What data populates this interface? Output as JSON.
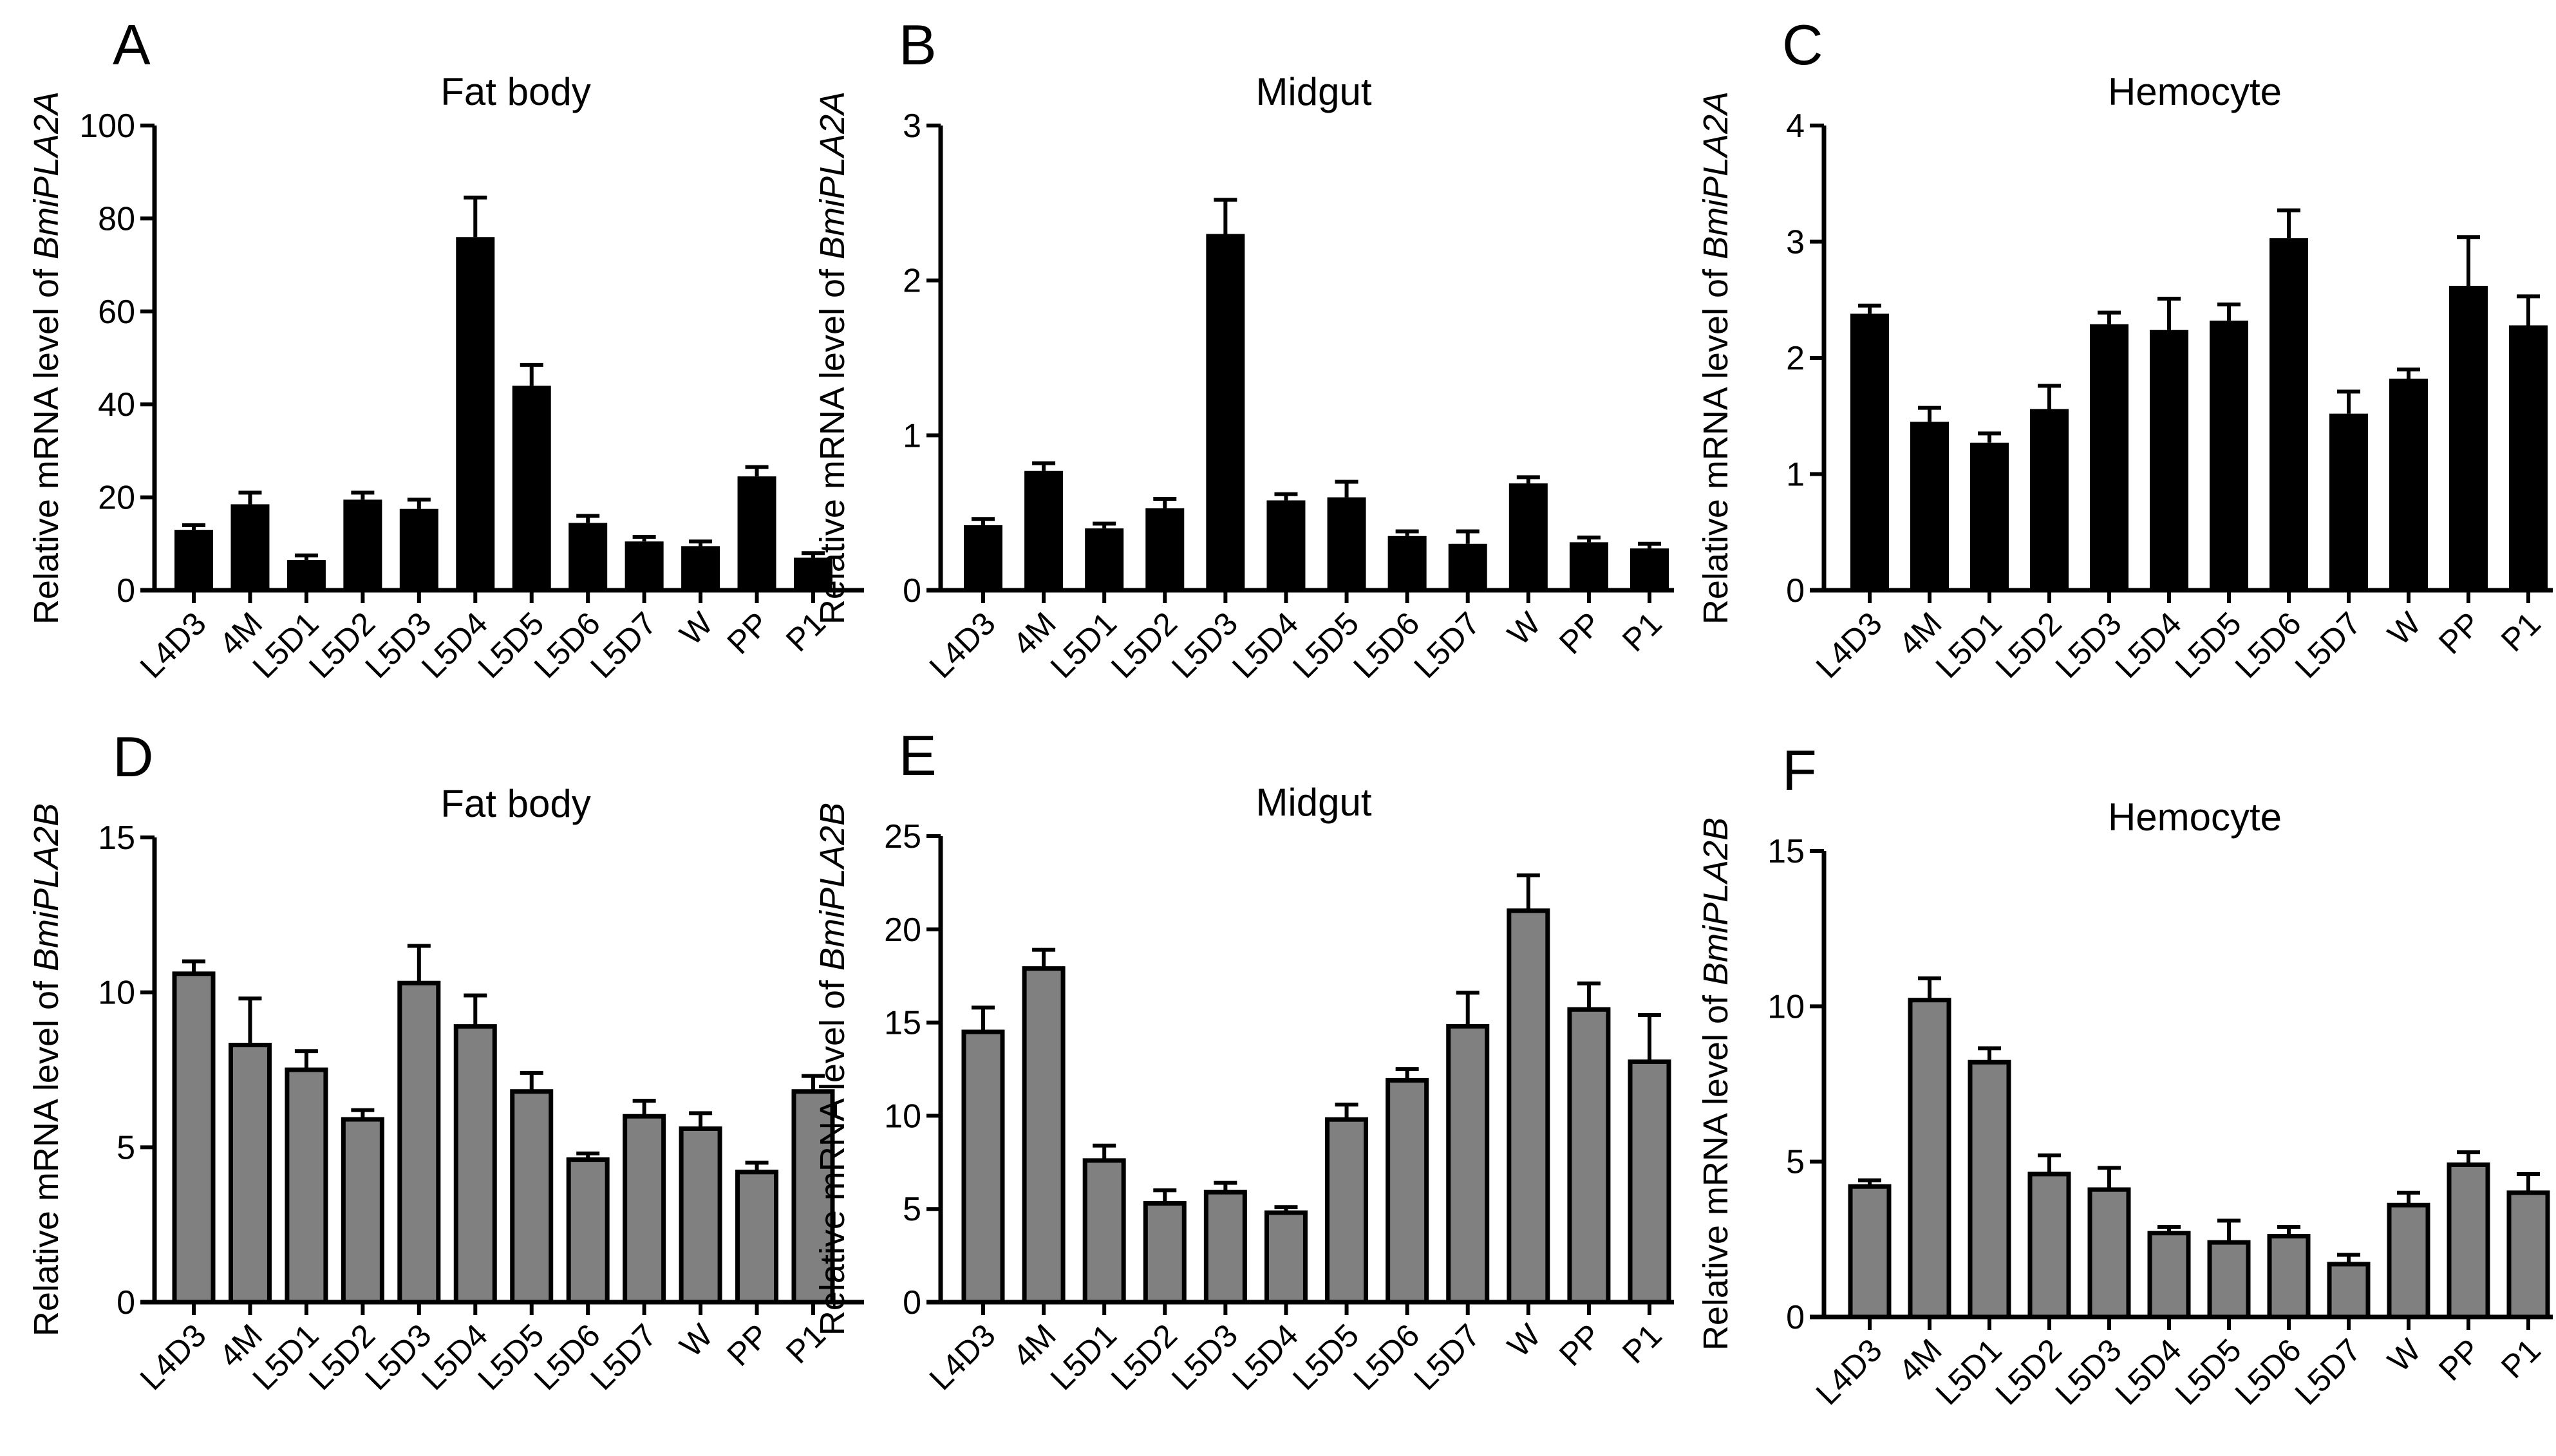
{
  "categories": [
    "L4D3",
    "4M",
    "L5D1",
    "L5D2",
    "L5D3",
    "L5D4",
    "L5D5",
    "L5D6",
    "L5D7",
    "W",
    "PP",
    "P1"
  ],
  "ylabel_prefix": "Relative mRNA level of ",
  "chart_data": [
    {
      "type": "bar",
      "panel": "A",
      "title": "Fat body",
      "gene": "BmiPLA2A",
      "color": "#000000",
      "ylim": [
        0,
        100
      ],
      "yticks": [
        0,
        20,
        40,
        60,
        80,
        100
      ],
      "values": [
        13,
        18.5,
        6.5,
        19.5,
        17.5,
        76,
        44,
        14.5,
        10.5,
        9.5,
        24.5,
        7
      ],
      "errors": [
        1,
        2.5,
        1,
        1.5,
        2,
        8.5,
        4.5,
        1.5,
        1,
        1,
        2,
        1
      ]
    },
    {
      "type": "bar",
      "panel": "B",
      "title": "Midgut",
      "gene": "BmiPLA2A",
      "color": "#000000",
      "ylim": [
        0,
        3
      ],
      "yticks": [
        0,
        1,
        2,
        3
      ],
      "values": [
        0.42,
        0.77,
        0.4,
        0.53,
        2.3,
        0.58,
        0.6,
        0.35,
        0.3,
        0.69,
        0.31,
        0.27
      ],
      "errors": [
        0.04,
        0.05,
        0.03,
        0.06,
        0.22,
        0.04,
        0.1,
        0.03,
        0.08,
        0.04,
        0.03,
        0.03
      ]
    },
    {
      "type": "bar",
      "panel": "C",
      "title": "Hemocyte",
      "gene": "BmiPLA2A",
      "color": "#000000",
      "ylim": [
        0,
        4
      ],
      "yticks": [
        0,
        1,
        2,
        3,
        4
      ],
      "values": [
        2.38,
        1.45,
        1.27,
        1.56,
        2.29,
        2.24,
        2.32,
        3.03,
        1.52,
        1.82,
        2.62,
        2.28
      ],
      "errors": [
        0.07,
        0.12,
        0.08,
        0.2,
        0.1,
        0.27,
        0.14,
        0.24,
        0.19,
        0.08,
        0.42,
        0.25
      ]
    },
    {
      "type": "bar",
      "panel": "D",
      "title": "Fat body",
      "gene": "BmiPLA2B",
      "color": "#808080",
      "ylim": [
        0,
        15
      ],
      "yticks": [
        0,
        5,
        10,
        15
      ],
      "values": [
        10.6,
        8.3,
        7.5,
        5.9,
        10.3,
        8.9,
        6.8,
        4.6,
        6.0,
        5.6,
        4.2,
        6.8
      ],
      "errors": [
        0.4,
        1.5,
        0.6,
        0.3,
        1.2,
        1.0,
        0.6,
        0.2,
        0.5,
        0.5,
        0.3,
        0.5
      ]
    },
    {
      "type": "bar",
      "panel": "E",
      "title": "Midgut",
      "gene": "BmiPLA2B",
      "color": "#808080",
      "ylim": [
        0,
        25
      ],
      "yticks": [
        0,
        5,
        10,
        15,
        20,
        25
      ],
      "values": [
        14.5,
        17.9,
        7.6,
        5.3,
        5.9,
        4.8,
        9.8,
        11.9,
        14.8,
        21.0,
        15.7,
        12.9
      ],
      "errors": [
        1.3,
        1.0,
        0.8,
        0.7,
        0.5,
        0.3,
        0.8,
        0.6,
        1.8,
        1.9,
        1.4,
        2.5
      ]
    },
    {
      "type": "bar",
      "panel": "F",
      "title": "Hemocyte",
      "gene": "BmiPLA2B",
      "color": "#808080",
      "ylim": [
        0,
        15
      ],
      "yticks": [
        0,
        5,
        10,
        15
      ],
      "values": [
        4.2,
        10.2,
        8.2,
        4.6,
        4.1,
        2.7,
        2.4,
        2.6,
        1.7,
        3.6,
        4.9,
        4.0
      ],
      "errors": [
        0.2,
        0.7,
        0.45,
        0.6,
        0.7,
        0.2,
        0.7,
        0.3,
        0.3,
        0.4,
        0.4,
        0.6
      ]
    }
  ]
}
